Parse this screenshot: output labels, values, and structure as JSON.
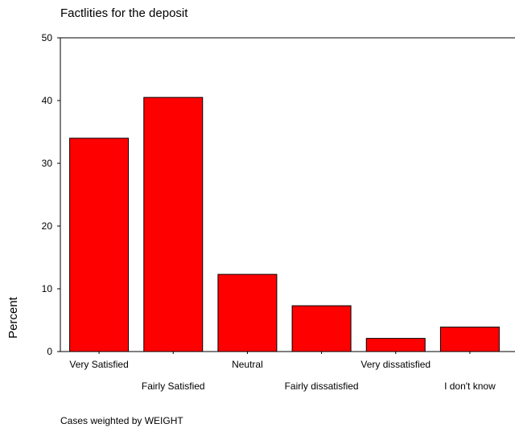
{
  "chart_data": {
    "type": "bar",
    "title": "Factlities for the deposit",
    "ylabel": "Percent",
    "xlabel": "",
    "categories": [
      "Very Satisfied",
      "Fairly Satisfied",
      "Neutral",
      "Fairly dissatisfied",
      "Very dissatisfied",
      "I don't know"
    ],
    "values": [
      34,
      40.5,
      12.3,
      7.3,
      2.1,
      3.9
    ],
    "ylim": [
      0,
      50
    ],
    "yticks": [
      0,
      10,
      20,
      30,
      40,
      50
    ],
    "bar_color": "#ff0000",
    "grid": false,
    "footnote": "Cases weighted by WEIGHT"
  }
}
